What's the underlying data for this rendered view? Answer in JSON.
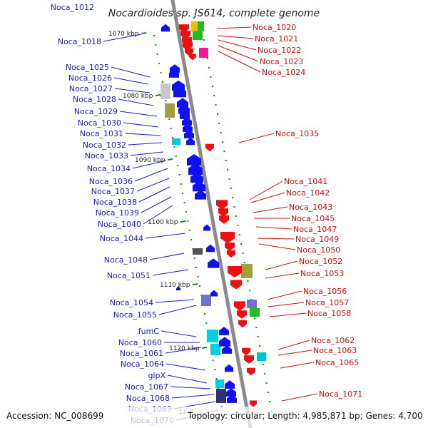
{
  "title": "Nocardioides sp. JS614, complete genome",
  "footer": {
    "accession": "Accession: NC_008699",
    "summary": "Topology: circular; Length: 4,985,871 bp; Genes: 4,700"
  },
  "colors": {
    "plus_strand_label": "#1a1ad6",
    "minus_strand_label": "#d01010",
    "plus_gene": "#1010f0",
    "minus_gene": "#ee1010",
    "axis": "#8a8a8a",
    "tick": "#1a8a1a"
  },
  "scale_marks": [
    "1070 kbp",
    "1080 kbp",
    "1090 kbp",
    "1100 kbp",
    "1110 kbp",
    "1120 kbp",
    "11"
  ],
  "left_labels": [
    "Noca_1012",
    "Noca_1018",
    "Noca_1025",
    "Noca_1026",
    "Noca_1027",
    "Noca_1028",
    "Noca_1029",
    "Noca_1030",
    "Noca_1031",
    "Noca_1032",
    "Noca_1033",
    "Noca_1034",
    "Noca_1036",
    "Noca_1037",
    "Noca_1038",
    "Noca_1039",
    "Noca_1040",
    "Noca_1044",
    "Noca_1048",
    "Noca_1051",
    "Noca_1054",
    "Noca_1055",
    "fumC",
    "Noca_1060",
    "Noca_1061",
    "Noca_1064",
    "glpX",
    "Noca_1067",
    "Noca_1068",
    "Noca_1069",
    "Noca_1070"
  ],
  "right_labels": [
    "Noca_1020",
    "Noca_1021",
    "Noca_1022",
    "Noca_1023",
    "Noca_1024",
    "Noca_1035",
    "Noca_1041",
    "Noca_1042",
    "Noca_1043",
    "Noca_1045",
    "Noca_1047",
    "Noca_1049",
    "Noca_1050",
    "Noca_1052",
    "Noca_1053",
    "Noca_1056",
    "Noca_1057",
    "Noca_1058",
    "Noca_1062",
    "Noca_1063",
    "Noca_1065",
    "Noca_1071"
  ]
}
